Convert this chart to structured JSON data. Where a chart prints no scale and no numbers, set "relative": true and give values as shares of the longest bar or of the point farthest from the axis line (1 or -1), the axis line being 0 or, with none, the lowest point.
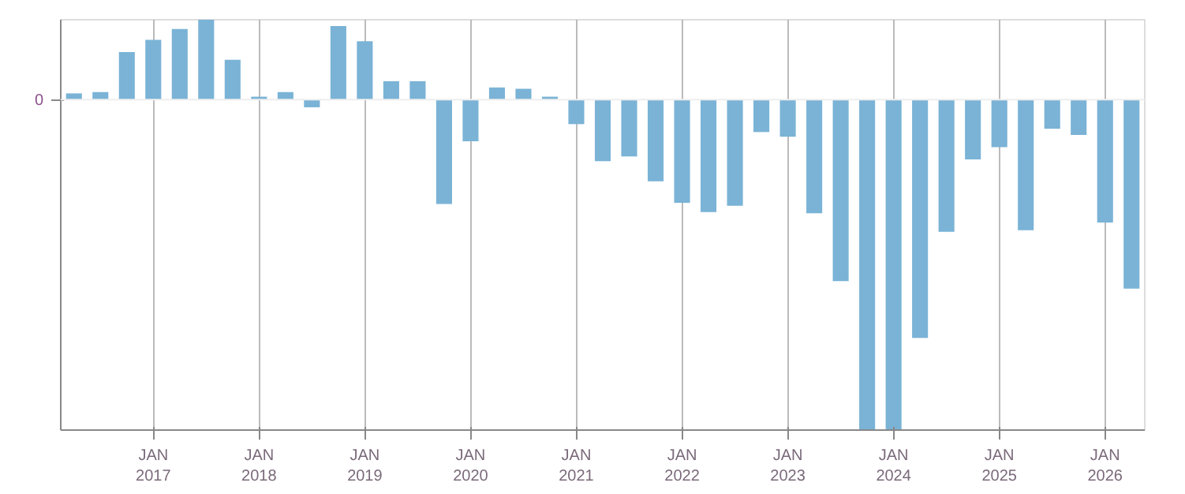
{
  "chart_data": {
    "type": "bar",
    "relative": true,
    "grid": "x",
    "categories": [
      null,
      null,
      null,
      "JAN\n2017",
      null,
      null,
      null,
      "JAN\n2018",
      null,
      null,
      null,
      "JAN\n2019",
      null,
      null,
      null,
      "JAN\n2020",
      null,
      null,
      null,
      "JAN\n2021",
      null,
      null,
      null,
      "JAN\n2022",
      null,
      null,
      null,
      "JAN\n2023",
      null,
      null,
      null,
      "JAN\n2024",
      null,
      null,
      null,
      "JAN\n2025",
      null,
      null,
      null,
      "JAN\n2026",
      null
    ],
    "ref_lines": [
      {
        "axis": "y",
        "value": 0,
        "label": "0",
        "color": "#eeeeee"
      }
    ],
    "color": "#7ab3d6",
    "values": [
      0.019,
      0.023,
      0.144,
      0.181,
      0.214,
      0.242,
      0.121,
      0.009,
      0.023,
      -0.023,
      0.223,
      0.177,
      0.056,
      0.056,
      -0.316,
      -0.126,
      0.037,
      0.033,
      0.009,
      -0.074,
      -0.186,
      -0.172,
      -0.247,
      -0.312,
      -0.34,
      -0.321,
      -0.098,
      -0.112,
      -0.344,
      -0.549,
      -1,
      -1,
      -0.721,
      -0.4,
      -0.181,
      -0.144,
      -0.395,
      -0.088,
      -0.107,
      -0.372,
      -0.572
    ]
  }
}
